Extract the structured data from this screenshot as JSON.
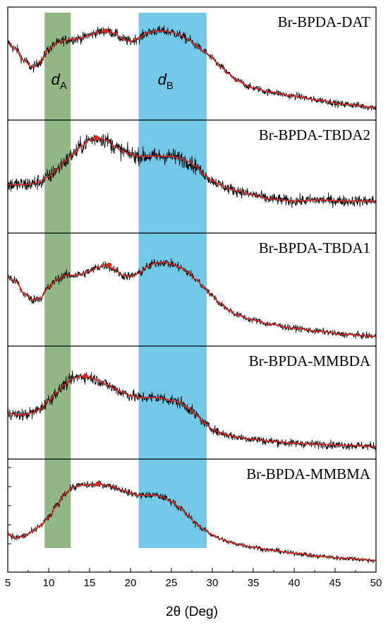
{
  "chart_data": {
    "type": "line",
    "xlabel": "2θ (Deg)",
    "ylabel": "",
    "xlim": [
      5,
      50
    ],
    "x_ticks": [
      5,
      10,
      15,
      20,
      25,
      30,
      35,
      40,
      45,
      50
    ],
    "bands": [
      {
        "label": "d",
        "sub": "A",
        "x_range": [
          9.5,
          12.7
        ],
        "color": "#4f8a3c"
      },
      {
        "label": "d",
        "sub": "B",
        "x_range": [
          21.0,
          29.3
        ],
        "color": "#1fa6d8"
      }
    ],
    "series": [
      {
        "name": "Br-BPDA-DAT",
        "noise": 0.05,
        "x": [
          5,
          6,
          7,
          8,
          9,
          10,
          11,
          12,
          13,
          14,
          15,
          16,
          17,
          18,
          19,
          20,
          21,
          22,
          23,
          24,
          25,
          26,
          27,
          28,
          29,
          30,
          31,
          32,
          33,
          35,
          37,
          40,
          43,
          46,
          50
        ],
        "y": [
          0.7,
          0.64,
          0.53,
          0.46,
          0.52,
          0.64,
          0.7,
          0.73,
          0.74,
          0.75,
          0.78,
          0.81,
          0.82,
          0.8,
          0.74,
          0.72,
          0.75,
          0.8,
          0.82,
          0.82,
          0.81,
          0.78,
          0.74,
          0.68,
          0.62,
          0.55,
          0.47,
          0.4,
          0.33,
          0.26,
          0.22,
          0.18,
          0.14,
          0.1,
          0.07
        ],
        "marker": {
          "x": 17.0,
          "y": 0.82
        }
      },
      {
        "name": "Br-BPDA-TBDA2",
        "noise": 0.08,
        "x": [
          5,
          6,
          7,
          8,
          9,
          10,
          11,
          12,
          13,
          14,
          15,
          16,
          17,
          18,
          19,
          20,
          21,
          22,
          23,
          24,
          25,
          26,
          27,
          28,
          29,
          30,
          31,
          32,
          33,
          35,
          37,
          40,
          43,
          46,
          50
        ],
        "y": [
          0.42,
          0.42,
          0.42,
          0.43,
          0.45,
          0.5,
          0.57,
          0.65,
          0.72,
          0.8,
          0.86,
          0.88,
          0.86,
          0.8,
          0.75,
          0.72,
          0.7,
          0.7,
          0.7,
          0.7,
          0.7,
          0.68,
          0.65,
          0.6,
          0.52,
          0.46,
          0.42,
          0.38,
          0.36,
          0.32,
          0.28,
          0.26,
          0.27,
          0.26,
          0.26
        ],
        "marker": {
          "x": 15.8,
          "y": 0.88
        }
      },
      {
        "name": "Br-BPDA-TBDA1",
        "noise": 0.045,
        "x": [
          5,
          6,
          7,
          8,
          9,
          10,
          11,
          12,
          13,
          14,
          15,
          16,
          17,
          18,
          19,
          20,
          21,
          22,
          23,
          24,
          25,
          26,
          27,
          28,
          29,
          30,
          31,
          32,
          33,
          35,
          37,
          40,
          43,
          46,
          50
        ],
        "y": [
          0.62,
          0.58,
          0.46,
          0.4,
          0.42,
          0.52,
          0.6,
          0.64,
          0.64,
          0.65,
          0.68,
          0.72,
          0.74,
          0.7,
          0.64,
          0.63,
          0.66,
          0.72,
          0.76,
          0.77,
          0.75,
          0.72,
          0.67,
          0.6,
          0.52,
          0.44,
          0.36,
          0.3,
          0.25,
          0.2,
          0.16,
          0.12,
          0.09,
          0.06,
          0.04
        ],
        "marker": {
          "x": 17.4,
          "y": 0.74
        }
      },
      {
        "name": "Br-BPDA-MMBDA",
        "noise": 0.06,
        "x": [
          5,
          6,
          7,
          8,
          9,
          10,
          11,
          12,
          13,
          14,
          15,
          16,
          17,
          18,
          19,
          20,
          21,
          22,
          23,
          24,
          25,
          26,
          27,
          28,
          29,
          30,
          31,
          32,
          33,
          35,
          37,
          40,
          43,
          46,
          50
        ],
        "y": [
          0.4,
          0.38,
          0.38,
          0.4,
          0.44,
          0.52,
          0.6,
          0.68,
          0.74,
          0.76,
          0.75,
          0.72,
          0.68,
          0.64,
          0.6,
          0.57,
          0.55,
          0.55,
          0.55,
          0.54,
          0.52,
          0.5,
          0.45,
          0.38,
          0.3,
          0.24,
          0.2,
          0.18,
          0.16,
          0.14,
          0.12,
          0.1,
          0.09,
          0.08,
          0.07
        ],
        "marker": {
          "x": 14.5,
          "y": 0.76
        }
      },
      {
        "name": "Br-BPDA-MMBMA",
        "noise": 0.035,
        "x": [
          5,
          6,
          7,
          8,
          9,
          10,
          11,
          12,
          13,
          14,
          15,
          16,
          17,
          18,
          19,
          20,
          21,
          22,
          23,
          24,
          25,
          26,
          27,
          28,
          29,
          30,
          31,
          32,
          33,
          35,
          37,
          40,
          43,
          46,
          50
        ],
        "y": [
          0.32,
          0.28,
          0.3,
          0.34,
          0.4,
          0.48,
          0.6,
          0.72,
          0.78,
          0.8,
          0.8,
          0.81,
          0.8,
          0.78,
          0.75,
          0.72,
          0.7,
          0.7,
          0.7,
          0.68,
          0.64,
          0.58,
          0.5,
          0.42,
          0.36,
          0.31,
          0.27,
          0.24,
          0.22,
          0.19,
          0.16,
          0.13,
          0.1,
          0.08,
          0.06
        ],
        "marker": {
          "x": 16.0,
          "y": 0.81
        }
      }
    ]
  }
}
